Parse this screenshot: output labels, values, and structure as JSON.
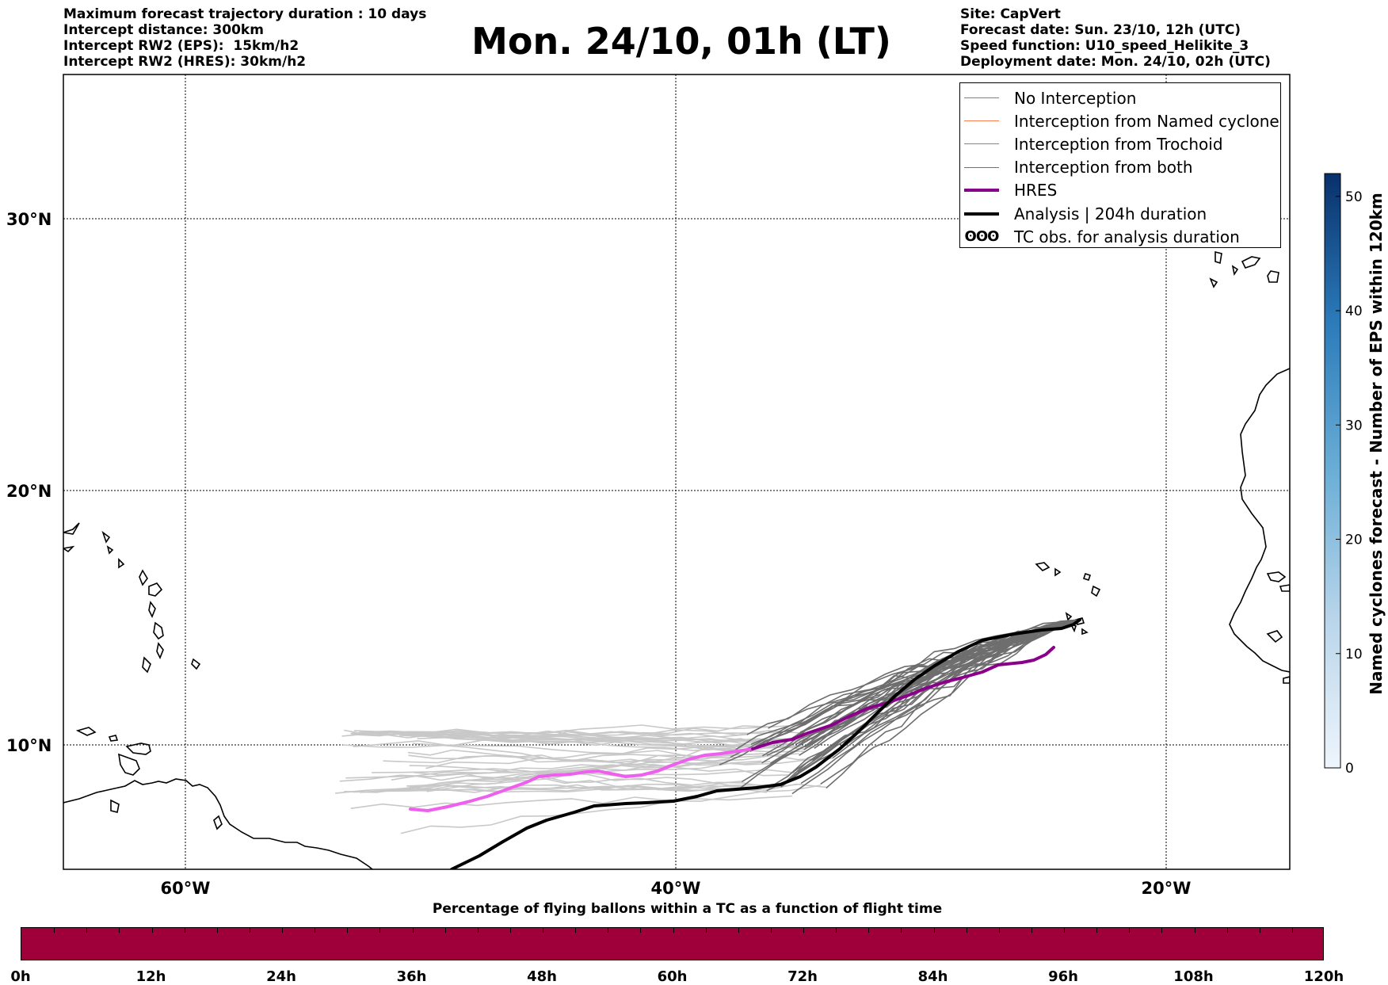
{
  "header": {
    "left_lines": [
      "Maximum forecast trajectory duration : 10 days",
      "Intercept distance: 300km",
      "Intercept RW2 (EPS):  15km/h2",
      "Intercept RW2 (HRES): 30km/h2"
    ],
    "title": "Mon. 24/10, 01h (LT)",
    "right_lines": [
      "Site: CapVert",
      "Forecast date: Sun. 23/10, 12h (UTC)",
      "Speed function: U10_speed_Helikite_3",
      "Deployment date: Mon. 24/10, 02h (UTC)"
    ]
  },
  "map": {
    "lat_labels": [
      "30°N",
      "20°N",
      "10°N"
    ],
    "lon_labels": [
      "60°W",
      "40°W",
      "20°W"
    ],
    "colors": {
      "no_interception_light": "#c8c8c8",
      "no_interception_dark": "#6e6e6e",
      "hres_late": "#8b008b",
      "hres_early": "#ee5fee",
      "analysis": "#000000"
    }
  },
  "legend": {
    "items": [
      {
        "label": "No Interception",
        "color": "#808080",
        "width": 1.5,
        "kind": "line"
      },
      {
        "label": "Interception from Named cyclone",
        "color": "#ff7f50",
        "width": 1.5,
        "kind": "line"
      },
      {
        "label": "Interception from Trochoid",
        "color": "#9b8b2a",
        "width": 1.5,
        "kind": "line"
      },
      {
        "label": "Interception from both",
        "color": "#2ca02c",
        "width": 1.5,
        "kind": "line"
      },
      {
        "label": "HRES",
        "color": "#8b008b",
        "width": 4,
        "kind": "line"
      },
      {
        "label": "Analysis | 204h duration",
        "color": "#000000",
        "width": 4,
        "kind": "line"
      },
      {
        "label": "TC obs. for analysis duration",
        "symbol": "ʘʘʘ",
        "kind": "symbol"
      }
    ]
  },
  "colorbar": {
    "label": "Named cyclones forecast - Number of EPS within 120km",
    "ticks": [
      "0",
      "10",
      "20",
      "30",
      "40",
      "50"
    ],
    "min": 0,
    "max": 52
  },
  "percentage_bar": {
    "title": "Percentage of flying ballons within a TC as a function of flight time",
    "fill_color": "#a0003a",
    "ticks": [
      "0h",
      "12h",
      "24h",
      "36h",
      "48h",
      "60h",
      "72h",
      "84h",
      "96h",
      "108h",
      "120h"
    ]
  }
}
